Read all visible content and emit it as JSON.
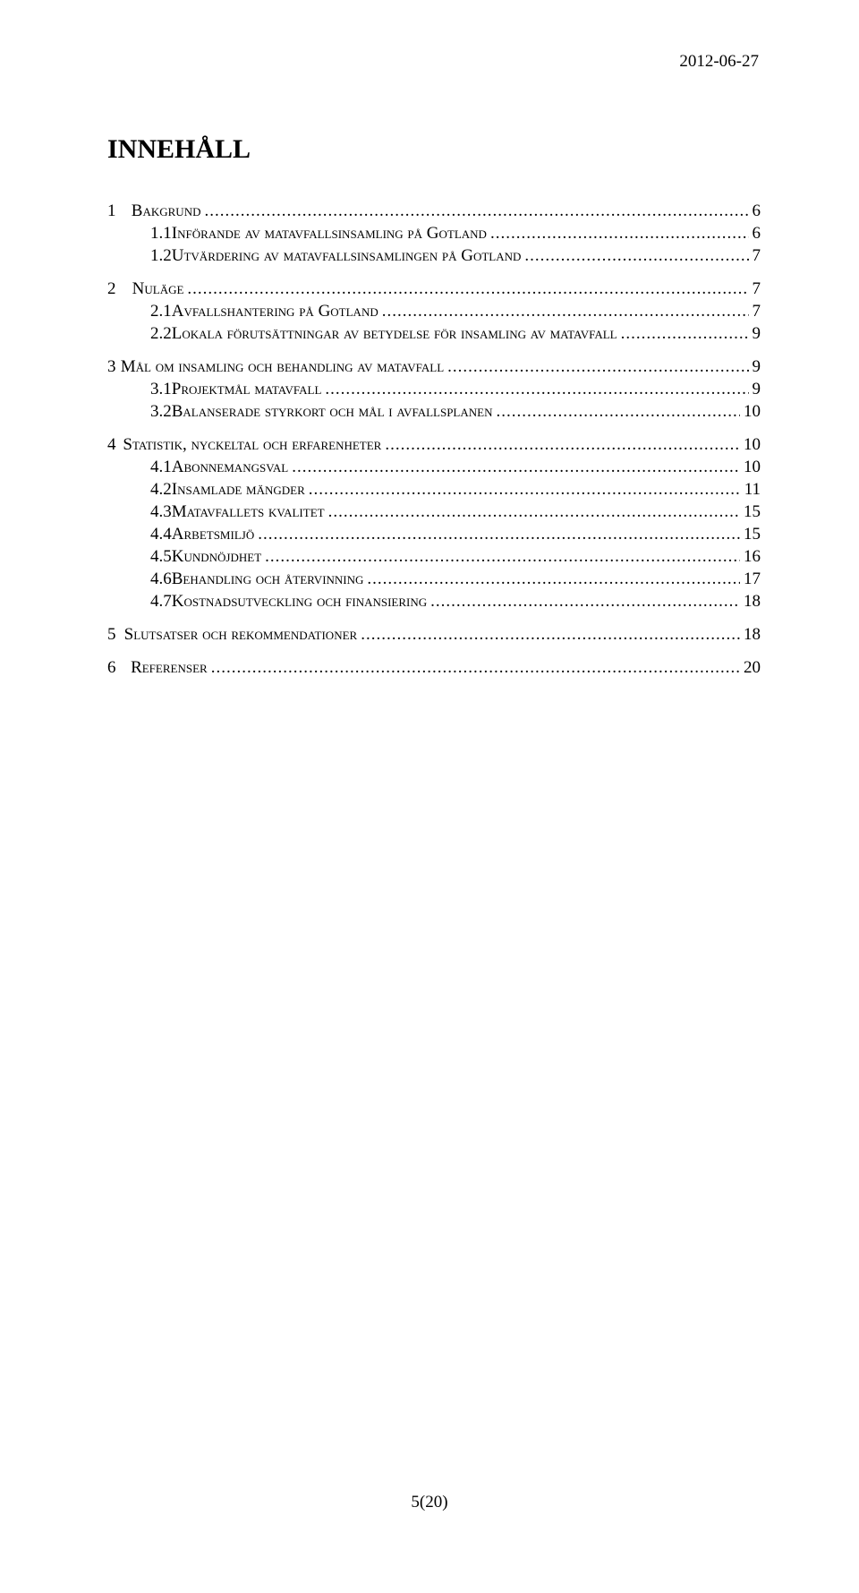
{
  "header": {
    "date": "2012-06-27"
  },
  "title": "INNEHÅLL",
  "toc": [
    {
      "level": 1,
      "num": "1",
      "text": "Bakgrund",
      "page": "6"
    },
    {
      "level": 2,
      "num": "1.1",
      "text": "Införande av matavfallsinsamling på Gotland",
      "page": "6"
    },
    {
      "level": 2,
      "num": "1.2",
      "text": "Utvärdering av matavfallsinsamlingen på Gotland",
      "page": "7"
    },
    {
      "level": 1,
      "num": "2",
      "text": "Nuläge",
      "page": "7"
    },
    {
      "level": 2,
      "num": "2.1",
      "text": "Avfallshantering på Gotland",
      "page": "7"
    },
    {
      "level": 2,
      "num": "2.2",
      "text": "Lokala förutsättningar av betydelse för insamling av matavfall",
      "page": "9"
    },
    {
      "level": 1,
      "num": "3",
      "text": "Mål om insamling och behandling av matavfall",
      "page": "9"
    },
    {
      "level": 2,
      "num": "3.1",
      "text": "Projektmål matavfall",
      "page": "9"
    },
    {
      "level": 2,
      "num": "3.2",
      "text": "Balanserade styrkort och mål i avfallsplanen",
      "page": "10"
    },
    {
      "level": 1,
      "num": "4",
      "text": "Statistik, nyckeltal och erfarenheter",
      "page": "10"
    },
    {
      "level": 2,
      "num": "4.1",
      "text": "Abonnemangsval",
      "page": "10"
    },
    {
      "level": 2,
      "num": "4.2",
      "text": "Insamlade mängder",
      "page": "11"
    },
    {
      "level": 2,
      "num": "4.3",
      "text": "Matavfallets kvalitet",
      "page": "15"
    },
    {
      "level": 2,
      "num": "4.4",
      "text": "Arbetsmiljö",
      "page": "15"
    },
    {
      "level": 2,
      "num": "4.5",
      "text": "Kundnöjdhet",
      "page": "16"
    },
    {
      "level": 2,
      "num": "4.6",
      "text": "Behandling och återvinning",
      "page": "17"
    },
    {
      "level": 2,
      "num": "4.7",
      "text": "Kostnadsutveckling och finansiering",
      "page": "18"
    },
    {
      "level": 1,
      "num": "5",
      "text": "Slutsatser och rekommendationer",
      "page": "18"
    },
    {
      "level": 1,
      "num": "6",
      "text": "Referenser",
      "page": "20"
    }
  ],
  "footer": {
    "page_label": "5(20)"
  }
}
